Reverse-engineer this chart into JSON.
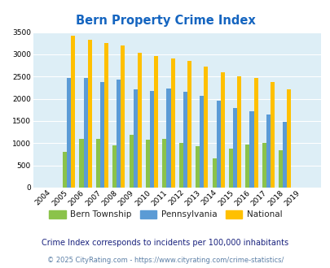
{
  "title": "Bern Property Crime Index",
  "years": [
    2004,
    2005,
    2006,
    2007,
    2008,
    2009,
    2010,
    2011,
    2012,
    2013,
    2014,
    2015,
    2016,
    2017,
    2018,
    2019
  ],
  "bern": [
    0,
    800,
    1100,
    1100,
    950,
    1180,
    1080,
    1100,
    1010,
    940,
    660,
    870,
    970,
    1010,
    840,
    0
  ],
  "pennsylvania": [
    0,
    2460,
    2470,
    2370,
    2430,
    2220,
    2180,
    2240,
    2160,
    2070,
    1950,
    1800,
    1720,
    1640,
    1490,
    0
  ],
  "national": [
    0,
    3420,
    3330,
    3260,
    3200,
    3040,
    2960,
    2910,
    2860,
    2730,
    2590,
    2500,
    2470,
    2380,
    2210,
    0
  ],
  "bern_color": "#8bc34a",
  "pa_color": "#5b9bd5",
  "national_color": "#ffc000",
  "bg_color": "#ddeef6",
  "ylim": [
    0,
    3500
  ],
  "yticks": [
    0,
    500,
    1000,
    1500,
    2000,
    2500,
    3000,
    3500
  ],
  "subtitle": "Crime Index corresponds to incidents per 100,000 inhabitants",
  "footer": "© 2025 CityRating.com - https://www.cityrating.com/crime-statistics/",
  "legend_labels": [
    "Bern Township",
    "Pennsylvania",
    "National"
  ],
  "title_color": "#1565c0",
  "subtitle_color": "#1a237e",
  "footer_color": "#5b7fa6"
}
